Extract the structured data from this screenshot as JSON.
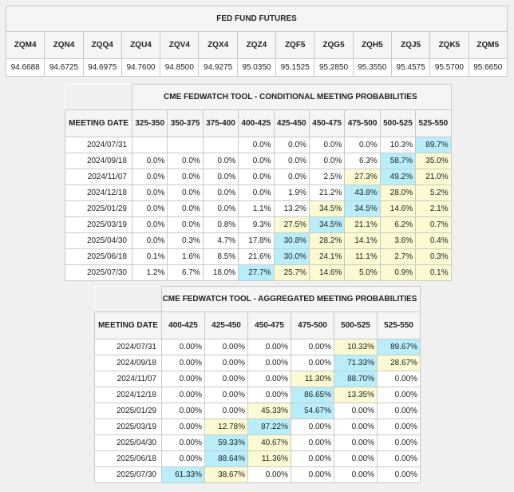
{
  "futures": {
    "title": "FED FUND FUTURES",
    "headers": [
      "ZQM4",
      "ZQN4",
      "ZQQ4",
      "ZQU4",
      "ZQV4",
      "ZQX4",
      "ZQZ4",
      "ZQF5",
      "ZQG5",
      "ZQH5",
      "ZQJ5",
      "ZQK5",
      "ZQM5"
    ],
    "values": [
      "94.6688",
      "94.6725",
      "94.6975",
      "94.7600",
      "94.8500",
      "94.9275",
      "95.0350",
      "95.1525",
      "95.2850",
      "95.3550",
      "95.4575",
      "95.5700",
      "95.6650"
    ]
  },
  "conditional": {
    "title": "CME FEDWATCH TOOL - CONDITIONAL MEETING PROBABILITIES",
    "date_header": "MEETING DATE",
    "headers": [
      "325-350",
      "350-375",
      "375-400",
      "400-425",
      "425-450",
      "450-475",
      "475-500",
      "500-525",
      "525-550"
    ],
    "rows": [
      {
        "date": "2024/07/31",
        "cells": [
          "",
          "",
          "",
          "0.0%",
          "0.0%",
          "0.0%",
          "0.0%",
          "10.3%",
          "89.7%"
        ],
        "hl": [
          "",
          "",
          "",
          "",
          "",
          "",
          "",
          "",
          "b"
        ]
      },
      {
        "date": "2024/09/18",
        "cells": [
          "0.0%",
          "0.0%",
          "0.0%",
          "0.0%",
          "0.0%",
          "0.0%",
          "6.3%",
          "58.7%",
          "35.0%"
        ],
        "hl": [
          "",
          "",
          "",
          "",
          "",
          "",
          "",
          "b",
          "y"
        ]
      },
      {
        "date": "2024/11/07",
        "cells": [
          "0.0%",
          "0.0%",
          "0.0%",
          "0.0%",
          "0.0%",
          "2.5%",
          "27.3%",
          "49.2%",
          "21.0%"
        ],
        "hl": [
          "",
          "",
          "",
          "",
          "",
          "",
          "y",
          "b",
          "y"
        ]
      },
      {
        "date": "2024/12/18",
        "cells": [
          "0.0%",
          "0.0%",
          "0.0%",
          "0.0%",
          "1.9%",
          "21.2%",
          "43.8%",
          "28.0%",
          "5.2%"
        ],
        "hl": [
          "",
          "",
          "",
          "",
          "",
          "",
          "b",
          "y",
          "y"
        ]
      },
      {
        "date": "2025/01/29",
        "cells": [
          "0.0%",
          "0.0%",
          "0.0%",
          "1.1%",
          "13.2%",
          "34.5%",
          "34.5%",
          "14.6%",
          "2.1%"
        ],
        "hl": [
          "",
          "",
          "",
          "",
          "",
          "y",
          "b",
          "y",
          "y"
        ]
      },
      {
        "date": "2025/03/19",
        "cells": [
          "0.0%",
          "0.0%",
          "0.8%",
          "9.3%",
          "27.5%",
          "34.5%",
          "21.1%",
          "6.2%",
          "0.7%"
        ],
        "hl": [
          "",
          "",
          "",
          "",
          "y",
          "b",
          "y",
          "y",
          "y"
        ]
      },
      {
        "date": "2025/04/30",
        "cells": [
          "0.0%",
          "0.3%",
          "4.7%",
          "17.8%",
          "30.8%",
          "28.2%",
          "14.1%",
          "3.6%",
          "0.4%"
        ],
        "hl": [
          "",
          "",
          "",
          "",
          "b",
          "y",
          "y",
          "y",
          "y"
        ]
      },
      {
        "date": "2025/06/18",
        "cells": [
          "0.1%",
          "1.6%",
          "8.5%",
          "21.6%",
          "30.0%",
          "24.1%",
          "11.1%",
          "2.7%",
          "0.3%"
        ],
        "hl": [
          "",
          "",
          "",
          "",
          "b",
          "y",
          "y",
          "y",
          "y"
        ]
      },
      {
        "date": "2025/07/30",
        "cells": [
          "1.2%",
          "6.7%",
          "18.0%",
          "27.7%",
          "25.7%",
          "14.6%",
          "5.0%",
          "0.9%",
          "0.1%"
        ],
        "hl": [
          "",
          "",
          "",
          "b",
          "y",
          "y",
          "y",
          "y",
          "y"
        ]
      }
    ]
  },
  "aggregated": {
    "title": "CME FEDWATCH TOOL - AGGREGATED MEETING PROBABILITIES",
    "date_header": "MEETING DATE",
    "headers": [
      "400-425",
      "425-450",
      "450-475",
      "475-500",
      "500-525",
      "525-550"
    ],
    "rows": [
      {
        "date": "2024/07/31",
        "cells": [
          "0.00%",
          "0.00%",
          "0.00%",
          "0.00%",
          "10.33%",
          "89.67%"
        ],
        "hl": [
          "",
          "",
          "",
          "",
          "y",
          "b"
        ]
      },
      {
        "date": "2024/09/18",
        "cells": [
          "0.00%",
          "0.00%",
          "0.00%",
          "0.00%",
          "71.33%",
          "28.67%"
        ],
        "hl": [
          "",
          "",
          "",
          "",
          "b",
          "y"
        ]
      },
      {
        "date": "2024/11/07",
        "cells": [
          "0.00%",
          "0.00%",
          "0.00%",
          "11.30%",
          "88.70%",
          "0.00%"
        ],
        "hl": [
          "",
          "",
          "",
          "y",
          "b",
          ""
        ]
      },
      {
        "date": "2024/12/18",
        "cells": [
          "0.00%",
          "0.00%",
          "0.00%",
          "86.65%",
          "13.35%",
          "0.00%"
        ],
        "hl": [
          "",
          "",
          "",
          "b",
          "y",
          ""
        ]
      },
      {
        "date": "2025/01/29",
        "cells": [
          "0.00%",
          "0.00%",
          "45.33%",
          "54.67%",
          "0.00%",
          "0.00%"
        ],
        "hl": [
          "",
          "",
          "y",
          "b",
          "",
          ""
        ]
      },
      {
        "date": "2025/03/19",
        "cells": [
          "0.00%",
          "12.78%",
          "87.22%",
          "0.00%",
          "0.00%",
          "0.00%"
        ],
        "hl": [
          "",
          "y",
          "b",
          "",
          "",
          ""
        ]
      },
      {
        "date": "2025/04/30",
        "cells": [
          "0.00%",
          "59.33%",
          "40.67%",
          "0.00%",
          "0.00%",
          "0.00%"
        ],
        "hl": [
          "",
          "b",
          "y",
          "",
          "",
          ""
        ]
      },
      {
        "date": "2025/06/18",
        "cells": [
          "0.00%",
          "88.64%",
          "11.36%",
          "0.00%",
          "0.00%",
          "0.00%"
        ],
        "hl": [
          "",
          "b",
          "y",
          "",
          "",
          ""
        ]
      },
      {
        "date": "2025/07/30",
        "cells": [
          "61.33%",
          "38.67%",
          "0.00%",
          "0.00%",
          "0.00%",
          "0.00%"
        ],
        "hl": [
          "b",
          "y",
          "",
          "",
          "",
          ""
        ]
      }
    ]
  }
}
